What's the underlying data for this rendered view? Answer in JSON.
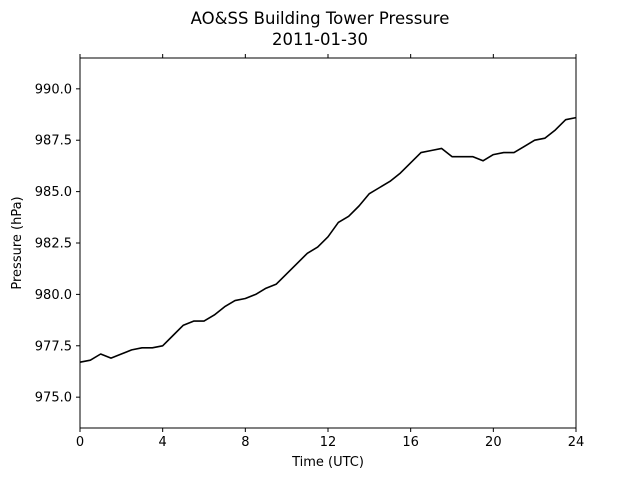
{
  "chart_data": {
    "type": "line",
    "title": "AO&SS Building Tower Pressure",
    "subtitle": "2011-01-30",
    "xlabel": "Time (UTC)",
    "ylabel": "Pressure (hPa)",
    "xlim": [
      0,
      24
    ],
    "ylim": [
      973.5,
      991.5
    ],
    "xticks": [
      0,
      4,
      8,
      12,
      16,
      20,
      24
    ],
    "xtick_labels": [
      "0",
      "4",
      "8",
      "12",
      "16",
      "20",
      "24"
    ],
    "yticks": [
      975.0,
      977.5,
      980.0,
      982.5,
      985.0,
      987.5,
      990.0
    ],
    "ytick_labels": [
      "975.0",
      "977.5",
      "980.0",
      "982.5",
      "985.0",
      "987.5",
      "990.0"
    ],
    "grid": false,
    "series": [
      {
        "color": "#000000",
        "x": [
          0,
          0.5,
          1,
          1.5,
          2,
          2.5,
          3,
          3.5,
          4,
          4.5,
          5,
          5.5,
          6,
          6.5,
          7,
          7.5,
          8,
          8.5,
          9,
          9.5,
          10,
          10.5,
          11,
          11.5,
          12,
          12.5,
          13,
          13.5,
          14,
          14.5,
          15,
          15.5,
          16,
          16.5,
          17,
          17.5,
          18,
          18.5,
          19,
          19.5,
          20,
          20.5,
          21,
          21.5,
          22,
          22.5,
          23,
          23.5,
          24
        ],
        "y": [
          976.7,
          976.8,
          977.1,
          976.9,
          977.1,
          977.3,
          977.4,
          977.4,
          977.5,
          978.0,
          978.5,
          978.7,
          978.7,
          979.0,
          979.4,
          979.7,
          979.8,
          980.0,
          980.3,
          980.5,
          981.0,
          981.5,
          982.0,
          982.3,
          982.8,
          983.5,
          983.8,
          984.3,
          984.9,
          985.2,
          985.5,
          985.9,
          986.4,
          986.9,
          987.0,
          987.1,
          986.7,
          986.7,
          986.7,
          986.5,
          986.8,
          986.9,
          986.9,
          987.2,
          987.5,
          987.6,
          988.0,
          988.5,
          988.6
        ]
      }
    ]
  }
}
